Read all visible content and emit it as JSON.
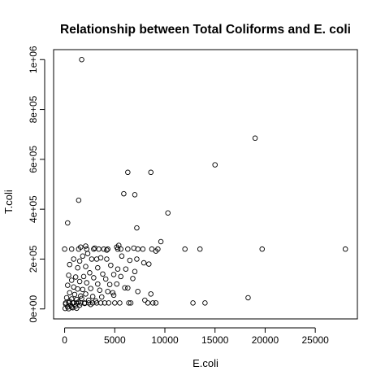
{
  "chart_data": {
    "type": "scatter",
    "title": "Relationship between Total Coliforms and E. coli",
    "xlabel": "E.coli",
    "ylabel": "T.coli",
    "xlim": [
      -1100,
      29200
    ],
    "ylim": [
      -40000,
      1040000
    ],
    "xticks": [
      0,
      5000,
      10000,
      15000,
      20000,
      25000
    ],
    "xtick_labels": [
      "0",
      "5000",
      "10000",
      "15000",
      "20000",
      "25000"
    ],
    "yticks": [
      0,
      200000,
      400000,
      600000,
      800000,
      1000000
    ],
    "ytick_labels": [
      "0e+00",
      "2e+05",
      "4e+05",
      "6e+05",
      "8e+05",
      "1e+06"
    ],
    "grid": false,
    "legend": "none",
    "marker": "open-circle",
    "color": "#000000",
    "series": [
      {
        "points": [
          [
            1700,
            1000000
          ],
          [
            19000,
            685000
          ],
          [
            15000,
            578000
          ],
          [
            6300,
            548000
          ],
          [
            8600,
            548000
          ],
          [
            5900,
            462000
          ],
          [
            7000,
            458000
          ],
          [
            1400,
            436000
          ],
          [
            10300,
            385000
          ],
          [
            300,
            345000
          ],
          [
            7200,
            325000
          ],
          [
            9600,
            270000
          ],
          [
            0,
            240000
          ],
          [
            700,
            240000
          ],
          [
            1400,
            240000
          ],
          [
            2200,
            240000
          ],
          [
            2900,
            240000
          ],
          [
            3400,
            240000
          ],
          [
            3900,
            240000
          ],
          [
            4300,
            240000
          ],
          [
            5300,
            240000
          ],
          [
            5600,
            240000
          ],
          [
            6300,
            240000
          ],
          [
            7300,
            240000
          ],
          [
            7800,
            240000
          ],
          [
            8700,
            240000
          ],
          [
            9300,
            240000
          ],
          [
            12000,
            240000
          ],
          [
            13500,
            240000
          ],
          [
            19700,
            240000
          ],
          [
            28000,
            240000
          ],
          [
            1600,
            248000
          ],
          [
            2100,
            252000
          ],
          [
            3000,
            244000
          ],
          [
            4200,
            236000
          ],
          [
            5200,
            248000
          ],
          [
            5400,
            255000
          ],
          [
            6900,
            244000
          ],
          [
            9100,
            232000
          ],
          [
            1800,
            212000
          ],
          [
            2300,
            222000
          ],
          [
            900,
            200000
          ],
          [
            1500,
            192000
          ],
          [
            2700,
            200000
          ],
          [
            3200,
            200000
          ],
          [
            3600,
            205000
          ],
          [
            4200,
            200000
          ],
          [
            5700,
            212000
          ],
          [
            6500,
            195000
          ],
          [
            7200,
            200000
          ],
          [
            7900,
            185000
          ],
          [
            8400,
            180000
          ],
          [
            500,
            178000
          ],
          [
            1300,
            165000
          ],
          [
            2100,
            170000
          ],
          [
            3300,
            165000
          ],
          [
            4600,
            175000
          ],
          [
            5300,
            160000
          ],
          [
            6100,
            160000
          ],
          [
            7000,
            150000
          ],
          [
            2500,
            145000
          ],
          [
            3800,
            140000
          ],
          [
            4900,
            138000
          ],
          [
            400,
            135000
          ],
          [
            1100,
            128000
          ],
          [
            1900,
            130000
          ],
          [
            2900,
            125000
          ],
          [
            4100,
            120000
          ],
          [
            5600,
            130000
          ],
          [
            6800,
            122000
          ],
          [
            700,
            115000
          ],
          [
            1500,
            110000
          ],
          [
            2200,
            105000
          ],
          [
            3300,
            100000
          ],
          [
            4500,
            98000
          ],
          [
            5200,
            100000
          ],
          [
            6000,
            85000
          ],
          [
            6300,
            84000
          ],
          [
            7300,
            70000
          ],
          [
            8600,
            60000
          ],
          [
            300,
            95000
          ],
          [
            900,
            88000
          ],
          [
            1300,
            80000
          ],
          [
            1800,
            78000
          ],
          [
            2600,
            82000
          ],
          [
            3500,
            75000
          ],
          [
            4300,
            70000
          ],
          [
            4800,
            65000
          ],
          [
            500,
            65000
          ],
          [
            1000,
            58000
          ],
          [
            1600,
            52000
          ],
          [
            2100,
            60000
          ],
          [
            2800,
            50000
          ],
          [
            3700,
            48000
          ],
          [
            4900,
            55000
          ],
          [
            200,
            45000
          ],
          [
            700,
            40000
          ],
          [
            1200,
            38000
          ],
          [
            1700,
            42000
          ],
          [
            2400,
            35000
          ],
          [
            3100,
            32000
          ],
          [
            500,
            30000
          ],
          [
            900,
            25000
          ],
          [
            1400,
            28000
          ],
          [
            2000,
            22000
          ],
          [
            2600,
            18000
          ],
          [
            100,
            20000
          ],
          [
            600,
            15000
          ],
          [
            1100,
            12000
          ],
          [
            1500,
            15000
          ],
          [
            300,
            8000
          ],
          [
            800,
            5000
          ],
          [
            1200,
            3000
          ],
          [
            50,
            2000
          ],
          [
            400,
            1000
          ],
          [
            700,
            8000
          ],
          [
            100,
            24000
          ],
          [
            400,
            24000
          ],
          [
            800,
            24000
          ],
          [
            1200,
            24000
          ],
          [
            1600,
            24000
          ],
          [
            2000,
            24000
          ],
          [
            2400,
            24000
          ],
          [
            2800,
            24000
          ],
          [
            3200,
            24000
          ],
          [
            3600,
            24000
          ],
          [
            4000,
            24000
          ],
          [
            4400,
            24000
          ],
          [
            5000,
            24000
          ],
          [
            5500,
            24000
          ],
          [
            6400,
            24000
          ],
          [
            6600,
            24000
          ],
          [
            8300,
            24000
          ],
          [
            8800,
            24000
          ],
          [
            9100,
            24000
          ],
          [
            12800,
            24000
          ],
          [
            14000,
            24000
          ],
          [
            18300,
            45000
          ],
          [
            8000,
            35000
          ]
        ]
      }
    ]
  }
}
